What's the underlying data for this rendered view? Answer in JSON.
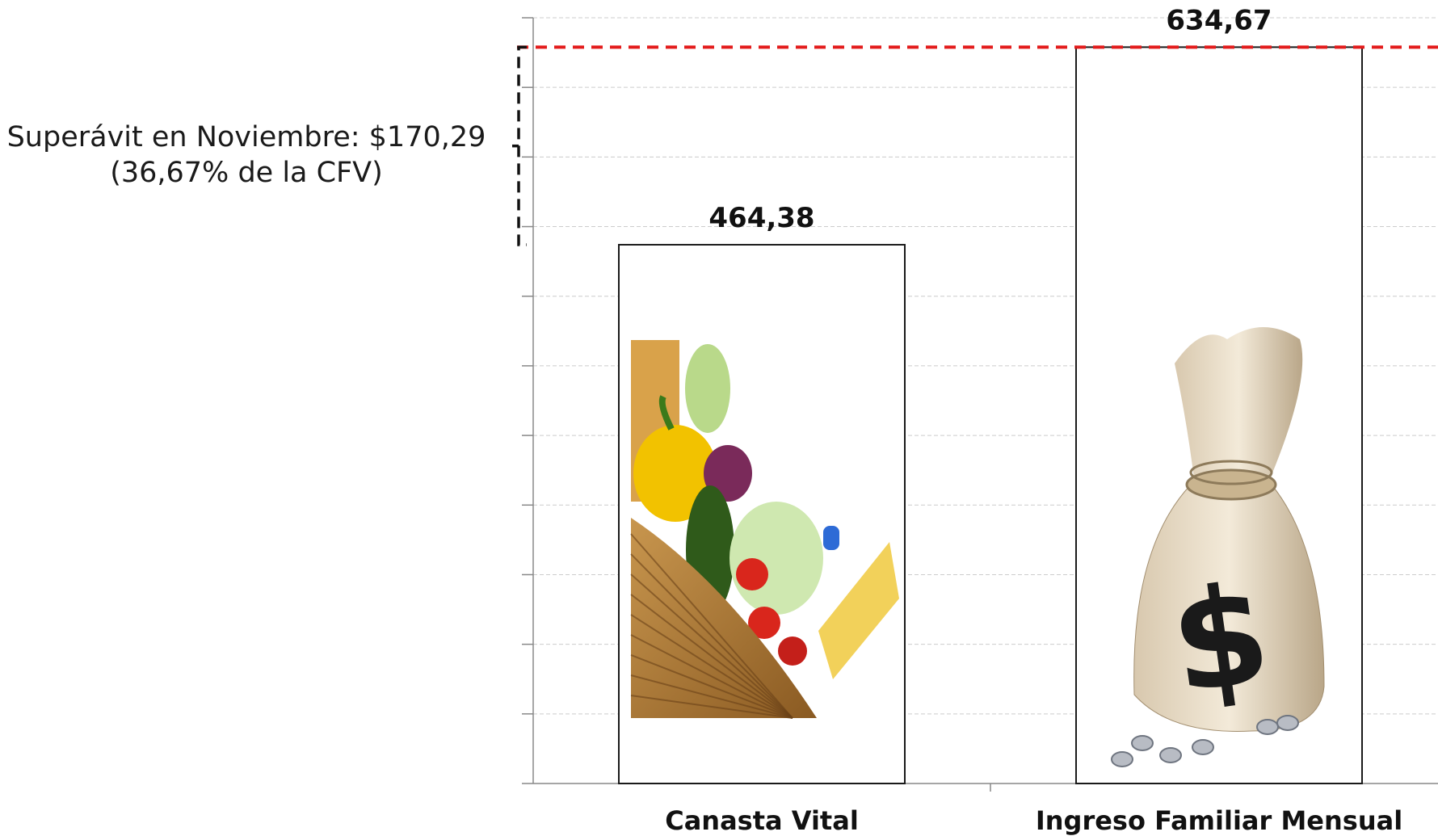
{
  "chart_data": {
    "type": "bar",
    "categories": [
      "Canasta Vital",
      "Ingreso Familiar Mensual"
    ],
    "values": [
      464.38,
      634.67
    ],
    "data_labels": [
      "464,38",
      "634,67"
    ],
    "ylim": [
      0,
      660
    ],
    "y_grid_step": 60,
    "grid": true,
    "bar_images": [
      "vegetable-basket",
      "money-bag"
    ],
    "reference_line": {
      "value": 634.67,
      "color": "#e31b1b",
      "style": "dashed"
    },
    "bracket": {
      "from": 464.38,
      "to": 634.67,
      "style": "dashed"
    },
    "annotation": {
      "line1": "Superávit en  Noviembre: $170,29",
      "line2": "(36,67% de la CFV)"
    }
  },
  "colors": {
    "bar_fill": "#ffffff",
    "bar_stroke": "#1a1a1a",
    "grid": "#cccccc",
    "axis": "#888888",
    "reference": "#e31b1b"
  }
}
